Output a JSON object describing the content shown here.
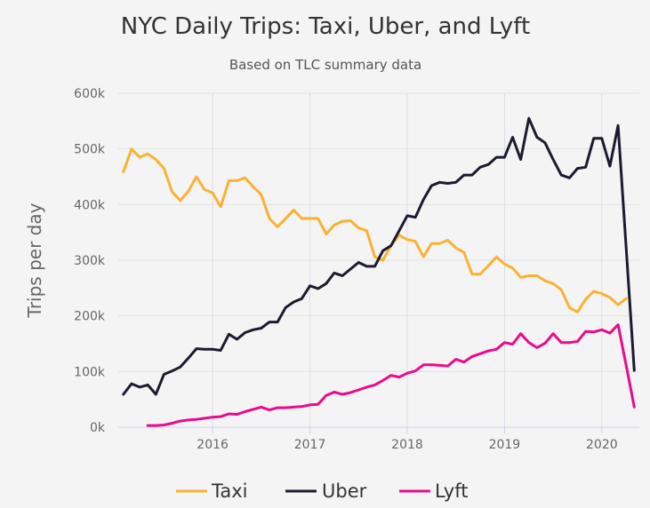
{
  "chart_data": {
    "type": "line",
    "title": "NYC Daily Trips: Taxi, Uber, and Lyft",
    "subtitle": "Based on TLC summary data",
    "xlabel": "",
    "ylabel": "Trips per day",
    "xlim": [
      "2015-01-12",
      "2020-05-20"
    ],
    "ylim": [
      0,
      600000
    ],
    "x_ticks": [
      "2016",
      "2017",
      "2018",
      "2019",
      "2020"
    ],
    "y_ticks": [
      0,
      100000,
      200000,
      300000,
      400000,
      500000,
      600000
    ],
    "y_tick_labels": [
      "0k",
      "100k",
      "200k",
      "300k",
      "400k",
      "500k",
      "600k"
    ],
    "grid": {
      "horizontal": true,
      "vertical": true
    },
    "legend": "bottom",
    "series": [
      {
        "name": "Taxi",
        "color": "#f9b233",
        "start": "2015-02",
        "values": [
          459000,
          500000,
          485000,
          491000,
          481000,
          465000,
          423000,
          407000,
          424000,
          450000,
          427000,
          421000,
          396000,
          443000,
          443000,
          448000,
          432000,
          418000,
          375000,
          360000,
          375000,
          390000,
          375000,
          375000,
          375000,
          347000,
          363000,
          370000,
          371000,
          358000,
          353000,
          306000,
          300000,
          326000,
          345000,
          337000,
          334000,
          306000,
          330000,
          330000,
          336000,
          322000,
          314000,
          275000,
          275000,
          290000,
          306000,
          293000,
          286000,
          269000,
          272000,
          272000,
          263000,
          258000,
          247000,
          215000,
          207000,
          230000,
          244000,
          240000,
          233000,
          220000,
          231000
        ]
      },
      {
        "name": "Uber",
        "color": "#1b1b2f",
        "start": "2015-02",
        "values": [
          59000,
          78000,
          72000,
          76000,
          59000,
          95000,
          101000,
          108000,
          124000,
          141000,
          140000,
          140000,
          138000,
          167000,
          158000,
          170000,
          175000,
          178000,
          189000,
          189000,
          215000,
          225000,
          231000,
          254000,
          249000,
          258000,
          277000,
          272000,
          284000,
          296000,
          289000,
          289000,
          317000,
          326000,
          353000,
          380000,
          377000,
          409000,
          434000,
          440000,
          438000,
          440000,
          453000,
          453000,
          467000,
          472000,
          485000,
          485000,
          521000,
          481000,
          555000,
          521000,
          511000,
          481000,
          453000,
          448000,
          465000,
          467000,
          519000,
          519000,
          469000,
          542000,
          322000,
          102000
        ]
      },
      {
        "name": "Lyft",
        "color": "#ea0b8c",
        "start": "2015-05",
        "values": [
          3000,
          3000,
          4000,
          7000,
          11000,
          13000,
          14000,
          16000,
          18000,
          19000,
          24000,
          23000,
          28000,
          32000,
          36000,
          31000,
          35000,
          35000,
          36000,
          37000,
          40000,
          41000,
          57000,
          63000,
          59000,
          62000,
          67000,
          72000,
          76000,
          84000,
          93000,
          90000,
          97000,
          101000,
          112000,
          112000,
          111000,
          110000,
          122000,
          117000,
          127000,
          132000,
          137000,
          140000,
          152000,
          149000,
          168000,
          152000,
          143000,
          151000,
          168000,
          152000,
          152000,
          154000,
          172000,
          171000,
          175000,
          169000,
          184000,
          111000,
          36000
        ]
      }
    ]
  }
}
